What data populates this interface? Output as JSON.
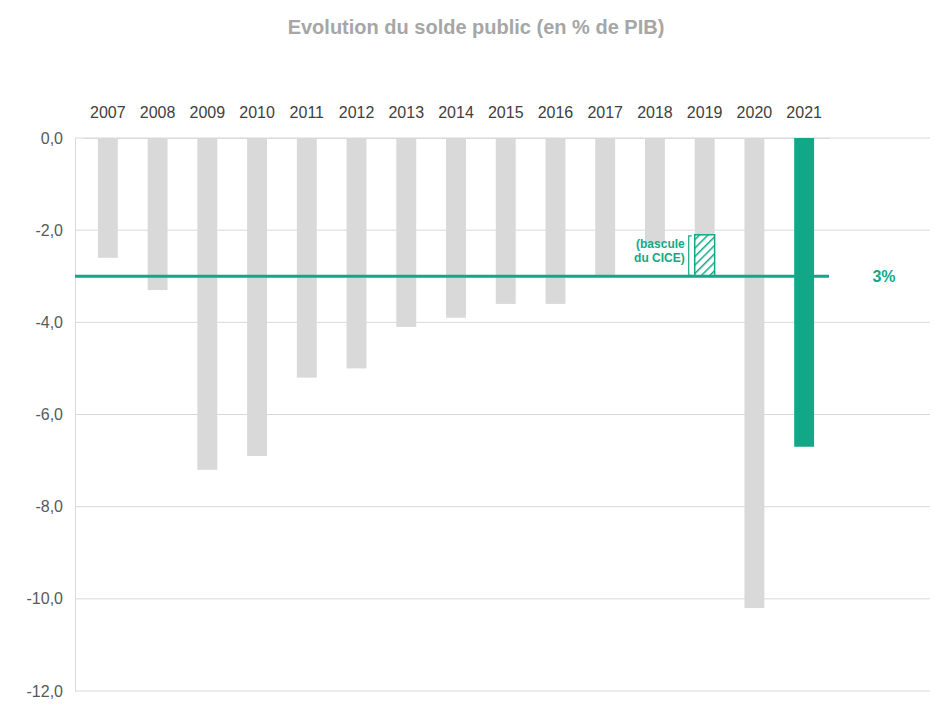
{
  "chart_data": {
    "type": "bar",
    "stacked": true,
    "grid": true,
    "title": "Evolution du solde public (en % de PIB)",
    "categories": [
      "2007",
      "2008",
      "2009",
      "2010",
      "2011",
      "2012",
      "2013",
      "2014",
      "2015",
      "2016",
      "2017",
      "2018",
      "2019",
      "2020",
      "2021"
    ],
    "series": [
      {
        "values": [
          -2.6,
          -3.3,
          -7.2,
          -6.9,
          -5.2,
          -5.0,
          -4.1,
          -3.9,
          -3.6,
          -3.6,
          -3.0,
          -2.3,
          -2.1,
          -10.2,
          -6.7
        ],
        "colors": [
          "#d9d9d9",
          "#d9d9d9",
          "#d9d9d9",
          "#d9d9d9",
          "#d9d9d9",
          "#d9d9d9",
          "#d9d9d9",
          "#d9d9d9",
          "#d9d9d9",
          "#d9d9d9",
          "#d9d9d9",
          "#d9d9d9",
          "#d9d9d9",
          "#d9d9d9",
          "#12a887"
        ]
      },
      {
        "name": "(bascule du CICE)",
        "color": "#12a887",
        "values": [
          null,
          null,
          null,
          null,
          null,
          null,
          null,
          null,
          null,
          null,
          null,
          null,
          -0.9,
          null,
          null
        ]
      }
    ],
    "ylim": [
      -12,
      0
    ],
    "yticks": [
      {
        "value": 0,
        "label": "0,0"
      },
      {
        "value": -2,
        "label": "-2,0"
      },
      {
        "value": -4,
        "label": "-4,0"
      },
      {
        "value": -6,
        "label": "-6,0"
      },
      {
        "value": -8,
        "label": "-8,0"
      },
      {
        "value": -10,
        "label": "-10,0"
      },
      {
        "value": -12,
        "label": "-12,0"
      }
    ],
    "annotations": [
      {
        "text": "3%",
        "value": -3,
        "color": "#12a887"
      }
    ]
  }
}
